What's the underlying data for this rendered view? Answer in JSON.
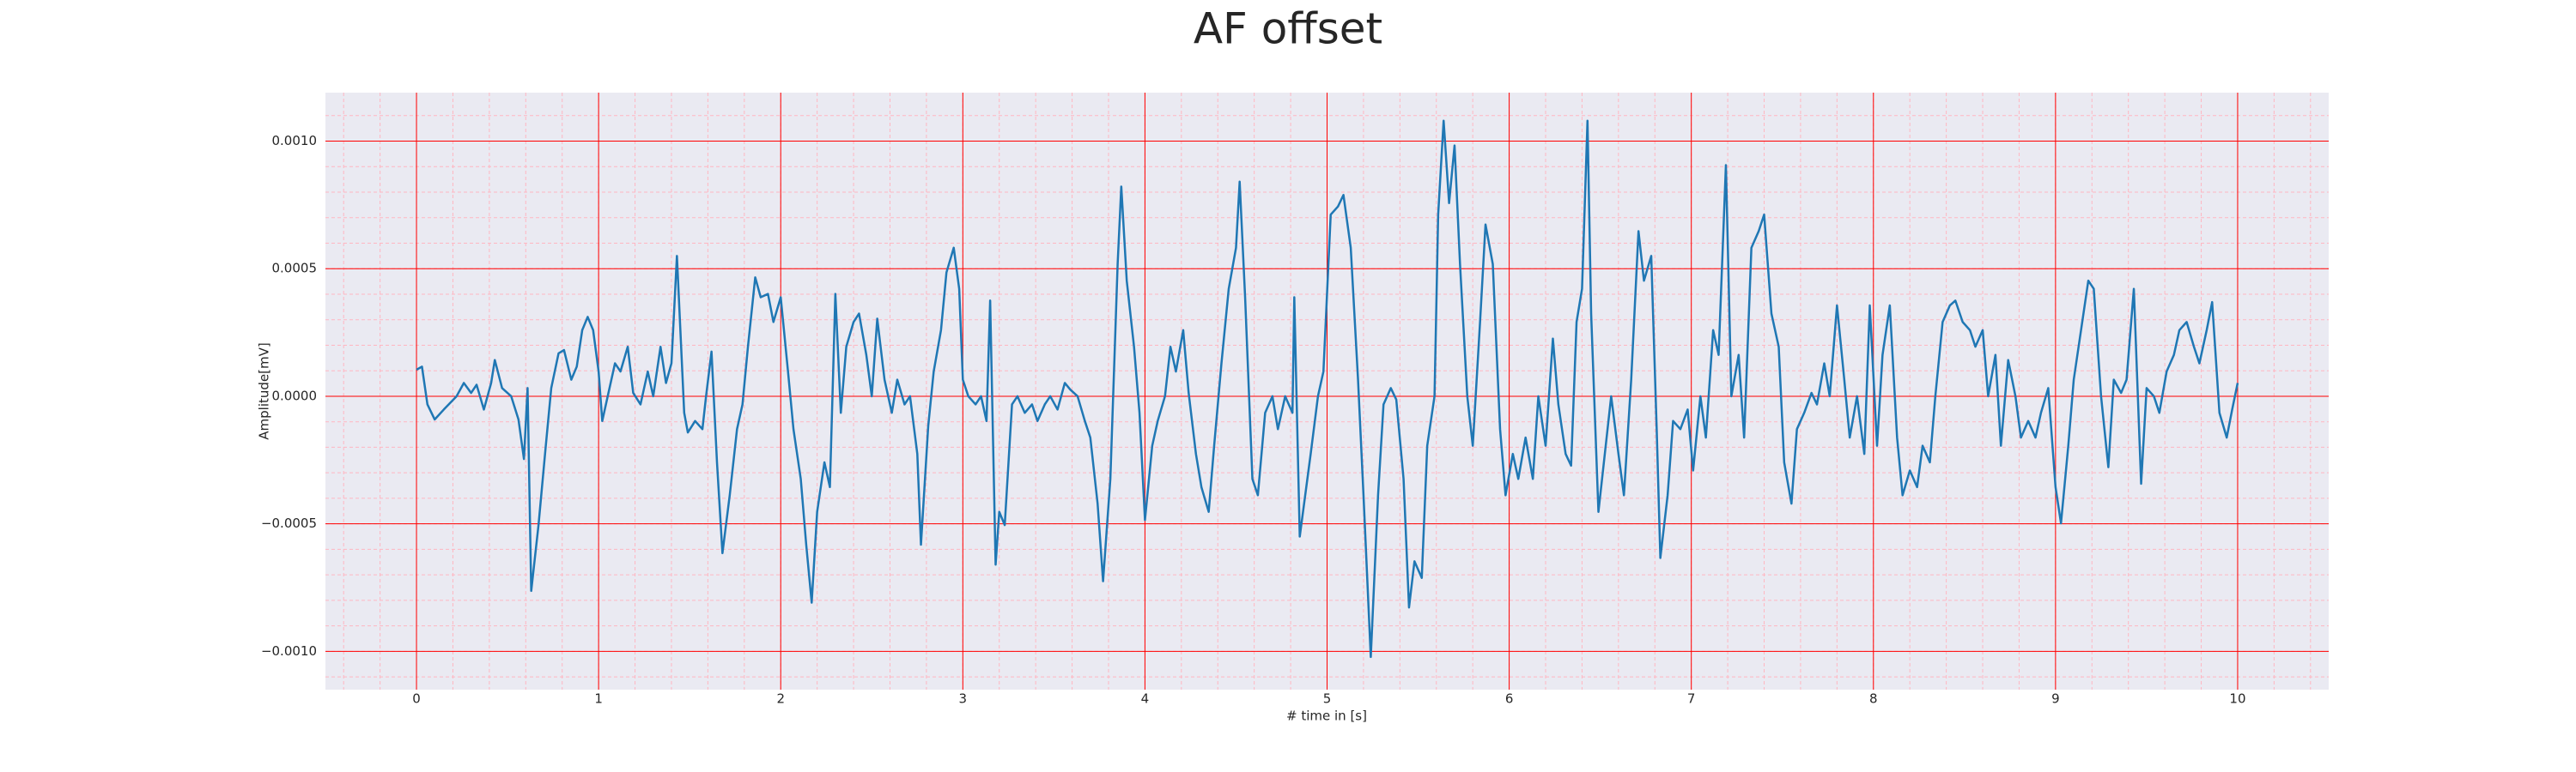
{
  "chart_data": {
    "type": "line",
    "title": "AF offset",
    "xlabel": "# time in [s]",
    "ylabel": "Amplitude[mV]",
    "xlim": [
      -0.5,
      10.5
    ],
    "ylim": [
      -0.00115,
      0.00119
    ],
    "xticks": [
      0,
      1,
      2,
      3,
      4,
      5,
      6,
      7,
      8,
      9,
      10
    ],
    "yticks": [
      {
        "value": -0.001,
        "label": "−0.0010"
      },
      {
        "value": -0.0005,
        "label": "−0.0005"
      },
      {
        "value": 0,
        "label": "0.0000"
      },
      {
        "value": 0.0005,
        "label": "0.0005"
      },
      {
        "value": 0.001,
        "label": "0.0010"
      }
    ],
    "grid": true,
    "minor_grid": true,
    "background": "#eaeaf2",
    "grid_color": "#ff0000",
    "minor_grid_color": "#ffb6c1",
    "x": [
      0.0,
      0.03,
      0.06,
      0.1,
      0.15,
      0.22,
      0.26,
      0.3,
      0.33,
      0.37,
      0.41,
      0.43,
      0.47,
      0.52,
      0.56,
      0.59,
      0.61,
      0.63,
      0.67,
      0.71,
      0.74,
      0.78,
      0.81,
      0.85,
      0.88,
      0.91,
      0.94,
      0.97,
      1.0,
      1.02,
      1.05,
      1.09,
      1.12,
      1.16,
      1.19,
      1.23,
      1.27,
      1.3,
      1.34,
      1.37,
      1.4,
      1.43,
      1.47,
      1.49,
      1.53,
      1.57,
      1.59,
      1.62,
      1.65,
      1.68,
      1.72,
      1.76,
      1.79,
      1.82,
      1.86,
      1.89,
      1.93,
      1.96,
      2.0,
      2.04,
      2.07,
      2.11,
      2.14,
      2.17,
      2.2,
      2.24,
      2.27,
      2.3,
      2.33,
      2.36,
      2.4,
      2.43,
      2.47,
      2.5,
      2.53,
      2.57,
      2.61,
      2.64,
      2.68,
      2.71,
      2.75,
      2.77,
      2.81,
      2.84,
      2.88,
      2.91,
      2.95,
      2.98,
      3.0,
      3.03,
      3.07,
      3.1,
      3.13,
      3.15,
      3.18,
      3.2,
      3.23,
      3.27,
      3.3,
      3.34,
      3.38,
      3.41,
      3.45,
      3.48,
      3.52,
      3.56,
      3.59,
      3.63,
      3.67,
      3.7,
      3.74,
      3.77,
      3.81,
      3.85,
      3.87,
      3.9,
      3.94,
      3.97,
      4.0,
      4.04,
      4.07,
      4.11,
      4.14,
      4.17,
      4.21,
      4.24,
      4.28,
      4.31,
      4.35,
      4.38,
      4.42,
      4.46,
      4.5,
      4.52,
      4.55,
      4.59,
      4.62,
      4.66,
      4.7,
      4.73,
      4.77,
      4.81,
      4.82,
      4.85,
      4.88,
      4.91,
      4.95,
      4.98,
      5.02,
      5.06,
      5.09,
      5.13,
      5.17,
      5.2,
      5.24,
      5.28,
      5.31,
      5.35,
      5.38,
      5.42,
      5.45,
      5.48,
      5.52,
      5.55,
      5.59,
      5.61,
      5.64,
      5.67,
      5.7,
      5.73,
      5.77,
      5.8,
      5.84,
      5.87,
      5.91,
      5.95,
      5.98,
      6.02,
      6.05,
      6.09,
      6.13,
      6.16,
      6.2,
      6.24,
      6.27,
      6.31,
      6.34,
      6.37,
      6.4,
      6.43,
      6.45,
      6.49,
      6.52,
      6.56,
      6.6,
      6.63,
      6.67,
      6.71,
      6.74,
      6.78,
      6.81,
      6.83,
      6.87,
      6.9,
      6.94,
      6.98,
      7.01,
      7.05,
      7.08,
      7.12,
      7.15,
      7.19,
      7.22,
      7.26,
      7.29,
      7.33,
      7.37,
      7.4,
      7.44,
      7.48,
      7.51,
      7.55,
      7.58,
      7.62,
      7.66,
      7.69,
      7.73,
      7.76,
      7.8,
      7.84,
      7.87,
      7.91,
      7.95,
      7.98,
      8.02,
      8.05,
      8.09,
      8.13,
      8.16,
      8.2,
      8.24,
      8.27,
      8.31,
      8.34,
      8.38,
      8.42,
      8.45,
      8.49,
      8.53,
      8.56,
      8.6,
      8.63,
      8.67,
      8.7,
      8.74,
      8.78,
      8.81,
      8.85,
      8.89,
      8.92,
      8.96,
      9.0,
      9.03,
      9.07,
      9.1,
      9.14,
      9.18,
      9.21,
      9.25,
      9.29,
      9.32,
      9.36,
      9.39,
      9.43,
      9.47,
      9.5,
      9.54,
      9.57,
      9.61,
      9.65,
      9.68,
      9.72,
      9.76,
      9.79,
      9.83,
      9.86,
      9.9,
      9.94,
      9.97,
      10.0
    ],
    "series": [
      {
        "color": "#1f77b4",
        "values": [
          0.000104,
          0.000116,
          -3.2e-05,
          -9.1e-05,
          -5.2e-05,
          0,
          5.2e-05,
          1.3e-05,
          4.5e-05,
          -5.2e-05,
          5.2e-05,
          0.000142,
          3.2e-05,
          0,
          -9.1e-05,
          -0.000246,
          3.2e-05,
          -0.000763,
          -0.000505,
          -0.000194,
          3.2e-05,
          0.000168,
          0.000181,
          6.5e-05,
          0.000116,
          0.000259,
          0.000311,
          0.000259,
          9.7e-05,
          -9.7e-05,
          0,
          0.000129,
          9.7e-05,
          0.000194,
          1.3e-05,
          -3.2e-05,
          9.7e-05,
          0,
          0.000194,
          5.2e-05,
          0.000129,
          0.00055,
          -6.5e-05,
          -0.000142,
          -9.7e-05,
          -0.000129,
          0,
          0.000175,
          -0.000259,
          -0.000615,
          -0.000388,
          -0.000129,
          -3.2e-05,
          0.000194,
          0.000466,
          0.000388,
          0.000401,
          0.000291,
          0.000388,
          9.7e-05,
          -0.000129,
          -0.000324,
          -0.000582,
          -0.000809,
          -0.000453,
          -0.000259,
          -0.000356,
          0.000401,
          -6.5e-05,
          0.000194,
          0.000291,
          0.000324,
          0.000162,
          0,
          0.000304,
          6.5e-05,
          -6.5e-05,
          6.5e-05,
          -3.2e-05,
          0,
          -0.000226,
          -0.000582,
          -0.000116,
          9.7e-05,
          0.000259,
          0.000485,
          0.000582,
          0.000421,
          6.5e-05,
          0,
          -3.2e-05,
          0,
          -9.7e-05,
          0.000375,
          -0.00066,
          -0.000453,
          -0.000505,
          -3.2e-05,
          0,
          -6.5e-05,
          -3.2e-05,
          -9.7e-05,
          -3.2e-05,
          0,
          -5.2e-05,
          5.2e-05,
          2.6e-05,
          0,
          -9.7e-05,
          -0.000162,
          -0.000421,
          -0.000725,
          -0.000324,
          0.000518,
          0.000822,
          0.000453,
          0.000194,
          -6.5e-05,
          -0.000485,
          -0.000194,
          -9.7e-05,
          0,
          0.000194,
          9.7e-05,
          0.000259,
          1.3e-05,
          -0.000226,
          -0.000356,
          -0.000453,
          -0.000194,
          0.000129,
          0.000421,
          0.000582,
          0.000841,
          0.000388,
          -0.000324,
          -0.000388,
          -6.5e-05,
          0,
          -0.000129,
          0,
          -6.5e-05,
          0.000388,
          -0.00055,
          -0.000388,
          -0.000226,
          0,
          9.7e-05,
          0.000712,
          0.000744,
          0.000789,
          0.000582,
          6.5e-05,
          -0.000388,
          -0.001022,
          -0.000388,
          -3.2e-05,
          3.2e-05,
          -1.3e-05,
          -0.000324,
          -0.000828,
          -0.000647,
          -0.000712,
          -0.000194,
          0,
          0.000712,
          0.00108,
          0.000757,
          0.000983,
          0.000518,
          0,
          -0.000194,
          0.000291,
          0.000673,
          0.000518,
          -0.000129,
          -0.000388,
          -0.000226,
          -0.000324,
          -0.000162,
          -0.000324,
          0,
          -0.000194,
          0.000226,
          -3.2e-05,
          -0.000226,
          -0.000272,
          0.000291,
          0.000421,
          0.00108,
          0.000324,
          -0.000453,
          -0.000259,
          0,
          -0.000226,
          -0.000388,
          6.5e-05,
          0.000647,
          0.000453,
          0.00055,
          -0.000129,
          -0.000634,
          -0.000388,
          -9.7e-05,
          -0.000129,
          -5.2e-05,
          -0.000291,
          0,
          -0.000162,
          0.000259,
          0.000162,
          0.000906,
          0,
          0.000162,
          -0.000162,
          0.000582,
          0.000647,
          0.000712,
          0.000324,
          0.000194,
          -0.000259,
          -0.000421,
          -0.000129,
          -6.5e-05,
          1.3e-05,
          -3.2e-05,
          0.000129,
          0,
          0.000356,
          6.5e-05,
          -0.000162,
          0,
          -0.000226,
          0.000356,
          -0.000194,
          0.000162,
          0.000356,
          -0.000162,
          -0.000388,
          -0.000291,
          -0.000356,
          -0.000194,
          -0.000259,
          0,
          0.000291,
          0.000356,
          0.000375,
          0.000291,
          0.000259,
          0.000194,
          0.000259,
          0,
          0.000162,
          -0.000194,
          0.000142,
          0,
          -0.000162,
          -9.7e-05,
          -0.000162,
          -6.5e-05,
          3.2e-05,
          -0.000356,
          -0.000498,
          -0.000194,
          6.5e-05,
          0.000259,
          0.000453,
          0.000421,
          0,
          -0.000278,
          6.5e-05,
          1.3e-05,
          6.5e-05,
          0.000421,
          -0.000343,
          3.2e-05,
          0,
          -6.5e-05,
          9.7e-05,
          0.000162,
          0.000259,
          0.000291,
          0.000194,
          0.000129,
          0.000259,
          0.000369,
          -6.5e-05,
          -0.000162,
          -5.2e-05,
          5.2e-05
        ]
      }
    ]
  }
}
